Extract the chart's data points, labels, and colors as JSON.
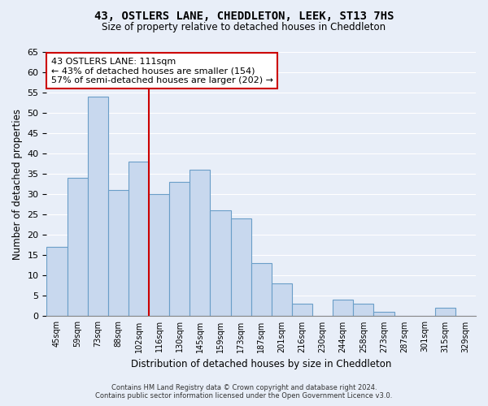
{
  "title": "43, OSTLERS LANE, CHEDDLETON, LEEK, ST13 7HS",
  "subtitle": "Size of property relative to detached houses in Cheddleton",
  "xlabel": "Distribution of detached houses by size in Cheddleton",
  "ylabel": "Number of detached properties",
  "bar_labels": [
    "45sqm",
    "59sqm",
    "73sqm",
    "88sqm",
    "102sqm",
    "116sqm",
    "130sqm",
    "145sqm",
    "159sqm",
    "173sqm",
    "187sqm",
    "201sqm",
    "216sqm",
    "230sqm",
    "244sqm",
    "258sqm",
    "273sqm",
    "287sqm",
    "301sqm",
    "315sqm",
    "329sqm"
  ],
  "bar_values": [
    17,
    34,
    54,
    31,
    38,
    30,
    33,
    36,
    26,
    24,
    13,
    8,
    3,
    0,
    4,
    3,
    1,
    0,
    0,
    2,
    0
  ],
  "bar_color": "#c8d8ee",
  "bar_edge_color": "#6a9ec8",
  "ylim": [
    0,
    65
  ],
  "yticks": [
    0,
    5,
    10,
    15,
    20,
    25,
    30,
    35,
    40,
    45,
    50,
    55,
    60,
    65
  ],
  "vline_x": 4.5,
  "vline_color": "#cc0000",
  "annotation_lines": [
    "43 OSTLERS LANE: 111sqm",
    "← 43% of detached houses are smaller (154)",
    "57% of semi-detached houses are larger (202) →"
  ],
  "footer_line1": "Contains HM Land Registry data © Crown copyright and database right 2024.",
  "footer_line2": "Contains public sector information licensed under the Open Government Licence v3.0.",
  "bg_color": "#e8eef8",
  "plot_bg_color": "#e8eef8",
  "grid_color": "#ffffff"
}
